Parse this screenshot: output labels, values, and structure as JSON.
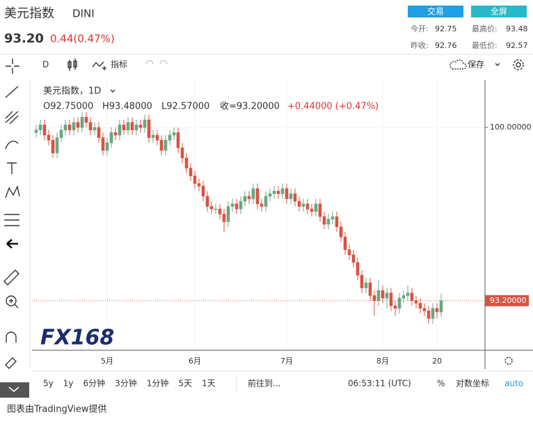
{
  "header": {
    "title": "美元指数",
    "symbol": "DINI",
    "price": "93.20",
    "change": "0.44(0.47%)",
    "buttons": [
      "交易",
      "全屏"
    ],
    "stats": [
      {
        "label": "今开:",
        "value": "92.75"
      },
      {
        "label": "最高价:",
        "value": "93.48"
      },
      {
        "label": "昨收:",
        "value": "92.76"
      },
      {
        "label": "最低价:",
        "value": "92.57"
      }
    ]
  },
  "toolbar": {
    "interval": "D",
    "indicators": "指标",
    "save": "保存"
  },
  "watermark": "FX168",
  "chart_data": {
    "type": "candlestick",
    "legend_title": "美元指数，1D",
    "ohlc_text": [
      "O92.75000",
      "H93.48000",
      "L92.57000",
      "收=93.20000",
      "+0.44000 (+0.47%)"
    ],
    "up_color": "#6ba583",
    "down_color": "#d75442",
    "grid": true,
    "ylim": [
      91.28,
      101.86
    ],
    "yticks": [
      {
        "value": 100,
        "label": "100.00000"
      }
    ],
    "last_price": {
      "value": 93.2,
      "label": "93.20000"
    },
    "categories": [
      null,
      null,
      null,
      null,
      null,
      null,
      null,
      null,
      null,
      null,
      null,
      null,
      null,
      null,
      null,
      null,
      null,
      "5月",
      null,
      null,
      null,
      null,
      null,
      null,
      null,
      null,
      null,
      null,
      null,
      null,
      null,
      null,
      null,
      null,
      null,
      null,
      null,
      null,
      "6月",
      null,
      null,
      null,
      null,
      null,
      null,
      null,
      null,
      null,
      null,
      null,
      null,
      null,
      null,
      null,
      null,
      null,
      null,
      null,
      null,
      null,
      "7月",
      null,
      null,
      null,
      null,
      null,
      null,
      null,
      null,
      null,
      null,
      null,
      null,
      null,
      null,
      null,
      null,
      null,
      null,
      null,
      null,
      null,
      null,
      "8月",
      null,
      null,
      null,
      null,
      null,
      null,
      null,
      null,
      null,
      null,
      null,
      null,
      "20",
      null
    ],
    "series": {
      "open": [
        99.8,
        99.9,
        100.1,
        99.7,
        99.5,
        99.0,
        99.6,
        99.9,
        100.1,
        99.9,
        100.2,
        100.0,
        100.4,
        100.2,
        99.9,
        100.0,
        99.6,
        99.1,
        99.4,
        99.8,
        99.7,
        100.1,
        99.9,
        100.2,
        99.9,
        100.1,
        100.0,
        100.3,
        99.6,
        99.7,
        99.5,
        99.1,
        99.5,
        99.7,
        99.8,
        99.2,
        98.8,
        98.4,
        98.1,
        97.8,
        97.7,
        97.3,
        96.9,
        96.8,
        96.8,
        96.6,
        96.3,
        96.9,
        97.0,
        96.8,
        97.1,
        97.3,
        97.2,
        97.6,
        97.0,
        96.9,
        97.3,
        97.4,
        97.5,
        97.4,
        97.6,
        97.2,
        97.4,
        97.1,
        96.9,
        97.0,
        96.8,
        96.7,
        97.0,
        96.5,
        96.2,
        96.4,
        96.5,
        96.1,
        95.7,
        95.2,
        95.0,
        94.7,
        94.2,
        93.7,
        93.9,
        93.4,
        93.2,
        93.6,
        93.3,
        93.5,
        93.0,
        92.9,
        93.3,
        93.4,
        93.5,
        93.2,
        93.1,
        92.9,
        92.8,
        92.5,
        92.9,
        92.75
      ],
      "high": [
        100.1,
        100.3,
        100.3,
        99.9,
        99.7,
        99.8,
        100.1,
        100.3,
        100.3,
        100.4,
        100.4,
        100.6,
        100.6,
        100.4,
        100.2,
        100.2,
        99.8,
        99.6,
        100.0,
        100.0,
        100.3,
        100.3,
        100.4,
        100.4,
        100.3,
        100.3,
        100.5,
        100.5,
        99.9,
        99.9,
        99.7,
        99.7,
        99.9,
        100.0,
        100.0,
        99.4,
        99.0,
        98.6,
        98.3,
        98.0,
        97.9,
        97.5,
        97.1,
        97.0,
        97.0,
        96.8,
        97.1,
        97.2,
        97.2,
        97.3,
        97.5,
        97.5,
        97.8,
        97.8,
        97.2,
        97.5,
        97.6,
        97.7,
        97.7,
        97.8,
        97.8,
        97.6,
        97.6,
        97.3,
        97.2,
        97.2,
        97.0,
        97.2,
        97.2,
        96.7,
        96.6,
        96.7,
        96.7,
        96.3,
        95.9,
        95.4,
        95.2,
        94.9,
        94.4,
        94.1,
        94.1,
        93.6,
        94.0,
        93.8,
        93.7,
        93.7,
        93.2,
        93.5,
        93.6,
        93.8,
        93.7,
        93.4,
        93.3,
        93.1,
        93.0,
        93.1,
        93.1,
        93.48
      ],
      "low": [
        99.6,
        99.7,
        99.5,
        99.3,
        98.8,
        98.8,
        99.4,
        99.7,
        99.7,
        99.7,
        99.8,
        99.8,
        100.0,
        99.7,
        99.7,
        99.4,
        98.9,
        98.9,
        99.2,
        99.5,
        99.5,
        99.7,
        99.7,
        99.7,
        99.7,
        99.8,
        99.8,
        99.4,
        99.4,
        99.3,
        98.9,
        98.9,
        99.3,
        99.5,
        99.0,
        98.6,
        98.2,
        97.9,
        97.6,
        97.5,
        97.1,
        96.7,
        96.6,
        96.6,
        96.4,
        95.9,
        96.1,
        96.7,
        96.6,
        96.6,
        96.9,
        97.0,
        97.0,
        96.8,
        96.7,
        96.7,
        97.1,
        97.2,
        97.2,
        97.2,
        97.0,
        97.0,
        96.9,
        96.7,
        96.7,
        96.6,
        96.5,
        96.5,
        96.3,
        96.0,
        96.0,
        96.2,
        95.9,
        95.5,
        95.0,
        94.8,
        94.5,
        94.0,
        93.5,
        93.5,
        93.2,
        92.6,
        93.0,
        93.1,
        92.9,
        92.8,
        92.6,
        92.7,
        93.1,
        93.2,
        93.0,
        92.9,
        92.7,
        92.6,
        92.3,
        92.3,
        92.5,
        92.57
      ],
      "close": [
        99.9,
        100.1,
        99.7,
        99.5,
        99.0,
        99.6,
        99.9,
        100.1,
        99.9,
        100.2,
        100.0,
        100.4,
        100.2,
        99.9,
        100.0,
        99.6,
        99.1,
        99.4,
        99.8,
        99.7,
        100.1,
        99.9,
        100.2,
        99.9,
        100.1,
        100.0,
        100.3,
        99.6,
        99.7,
        99.5,
        99.1,
        99.5,
        99.7,
        99.8,
        99.2,
        98.8,
        98.4,
        98.1,
        97.8,
        97.7,
        97.3,
        96.9,
        96.8,
        96.8,
        96.6,
        96.3,
        96.9,
        97.0,
        96.8,
        97.1,
        97.3,
        97.2,
        97.6,
        97.0,
        96.9,
        97.3,
        97.4,
        97.5,
        97.4,
        97.6,
        97.2,
        97.4,
        97.1,
        96.9,
        97.0,
        96.8,
        96.7,
        97.0,
        96.5,
        96.2,
        96.4,
        96.5,
        96.1,
        95.7,
        95.2,
        95.0,
        94.7,
        94.2,
        93.7,
        93.9,
        93.4,
        93.2,
        93.6,
        93.3,
        93.5,
        93.0,
        92.9,
        93.3,
        93.4,
        93.5,
        93.2,
        93.1,
        92.9,
        92.8,
        92.5,
        92.9,
        92.76,
        93.2
      ]
    }
  },
  "bottom_bar": {
    "ranges": [
      "5y",
      "1y",
      "6分钟",
      "3分钟",
      "1分钟",
      "5天",
      "1天"
    ],
    "goto": "前往到...",
    "time": "06:53:11 (UTC)",
    "percent": "%",
    "log": "对数坐标",
    "auto": "auto"
  },
  "footer": "图表由TradingView提供"
}
